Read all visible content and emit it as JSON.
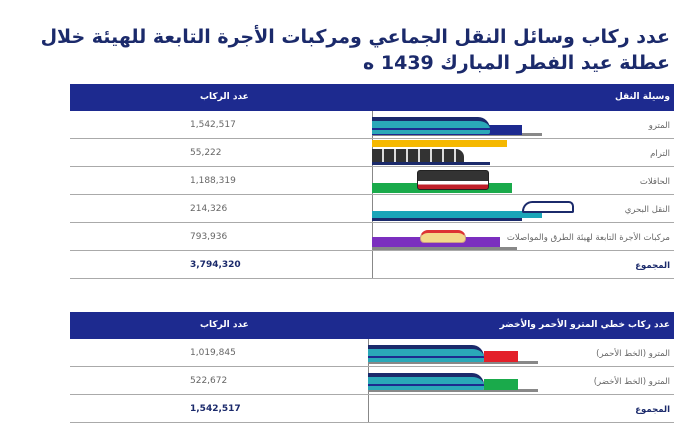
{
  "title": {
    "line1": "عدد ركاب وسائل النقل الجماعي ومركبات الأجرة التابعة للهيئة خلال",
    "line2": "عطلة عيد الفطر المبارك 1439 ه"
  },
  "table1": {
    "headers": {
      "mode": "وسيلة النقل",
      "riders": "عدد الركاب"
    },
    "rows": [
      {
        "label": "المترو",
        "value": "1,542,517",
        "icon": "metro-train-icon",
        "color": "#1d2a8f"
      },
      {
        "label": "الترام",
        "value": "55,222",
        "icon": "tram-icon",
        "color": "#f5b800"
      },
      {
        "label": "الحافلات",
        "value": "1,188,319",
        "icon": "bus-icon",
        "color": "#1aaa4b"
      },
      {
        "label": "النقل البحري",
        "value": "214,326",
        "icon": "boat-icon",
        "color": "#1aa5b8"
      },
      {
        "label": "مركبات الأجرة التابعة لهيئة الطرق والمواصلات",
        "value": "793,936",
        "icon": "taxi-icon",
        "color": "#7b2fbf"
      }
    ],
    "total": {
      "label": "المجموع",
      "value": "3,794,320"
    }
  },
  "table2": {
    "headers": {
      "mode": "عدد ركاب خطي المترو الأحمر والأخضر",
      "riders": "عدد الركاب"
    },
    "rows": [
      {
        "label": "المترو (الخط الأحمر)",
        "value": "1,019,845",
        "icon": "metro-train-icon",
        "color": "#e3202a"
      },
      {
        "label": "المترو (الخط الأخضر)",
        "value": "522,672",
        "icon": "metro-train-icon",
        "color": "#1aaa4b"
      }
    ],
    "total": {
      "label": "المجموع",
      "value": "1,542,517"
    }
  }
}
